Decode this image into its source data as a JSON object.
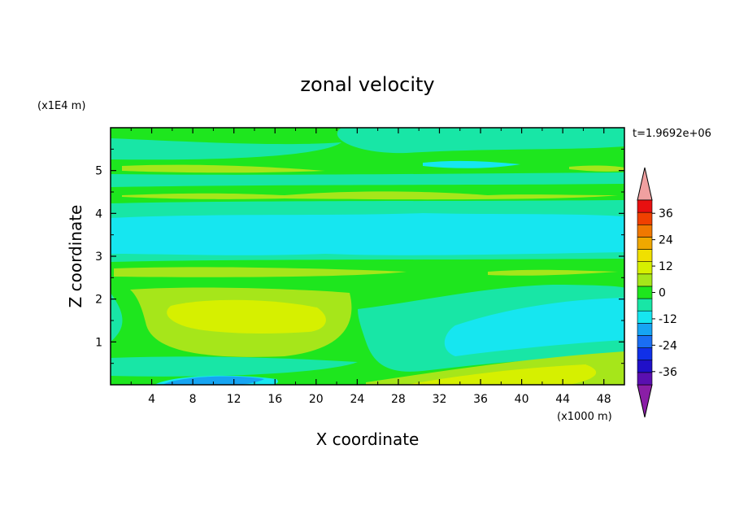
{
  "chart_data": {
    "type": "heatmap",
    "title": "zonal velocity",
    "xlabel": "X coordinate",
    "ylabel": "Z coordinate",
    "x_unit_label": "(x1000 m)",
    "y_unit_label": "(x1E4 m)",
    "time_label": "t=1.9692e+06",
    "xlim": [
      0,
      50
    ],
    "ylim": [
      0,
      6
    ],
    "x_ticks": [
      "4",
      "8",
      "12",
      "16",
      "20",
      "24",
      "28",
      "32",
      "36",
      "40",
      "44",
      "48"
    ],
    "y_ticks": [
      "1",
      "2",
      "3",
      "4",
      "5"
    ],
    "colorbar": {
      "levels": [
        -42,
        -36,
        -30,
        -24,
        -18,
        -12,
        -6,
        0,
        6,
        12,
        18,
        24,
        30,
        36,
        42
      ],
      "tick_labels": [
        "36",
        "24",
        "12",
        "0",
        "-12",
        "-24",
        "-36"
      ],
      "colors": [
        "#8a1ea6",
        "#5a0fb0",
        "#2010c8",
        "#1030e8",
        "#1a6ef2",
        "#16a4f2",
        "#16e6f0",
        "#18e6a6",
        "#1ee61e",
        "#a6e61a",
        "#d6f000",
        "#f0e000",
        "#f0a800",
        "#f07800",
        "#f04000",
        "#e81010",
        "#f0a0a0"
      ]
    },
    "regions_description_free": true
  }
}
